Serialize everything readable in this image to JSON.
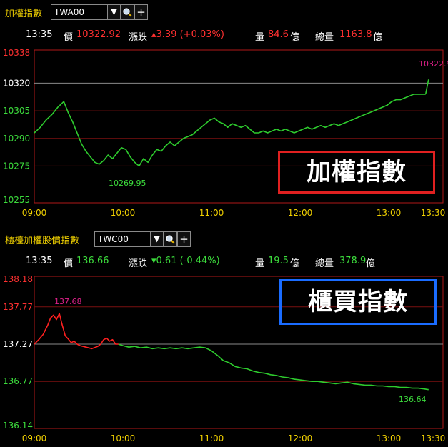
{
  "top": {
    "title": "加權指數",
    "symbol": "TWA00",
    "info": {
      "time": "13:35",
      "price_label": "價",
      "price": "10322.92",
      "change_label": "漲跌",
      "change": "▴3.39 (+0.03%)",
      "volume_label": "量",
      "volume": "84.6",
      "volume_unit": "億",
      "total_label": "總量",
      "total": "1163.8",
      "total_unit": "億"
    },
    "badge": "加權指數"
  },
  "bottom": {
    "title": "櫃檯加權股價指數",
    "symbol": "TWC00",
    "info": {
      "time": "13:35",
      "price_label": "價",
      "price": "136.66",
      "change_label": "漲跌",
      "change": "▾0.61 (-0.44%)",
      "volume_label": "量",
      "volume": "19.5",
      "volume_unit": "億",
      "total_label": "總量",
      "total": "378.9",
      "total_unit": "億"
    },
    "badge": "櫃買指數"
  },
  "icons": {
    "dropdown": "chevron-down-icon",
    "search": "magnifier-icon",
    "add": "plus-icon"
  },
  "colors": {
    "up": "#ff2020",
    "down": "#2ecc2e",
    "axis_label": "#f0d000",
    "badge_top_border": "#e02020",
    "badge_bottom_border": "#1a6cff"
  },
  "chart_data": [
    {
      "type": "line",
      "title": "加權指數",
      "x_ticks": [
        "09:00",
        "10:00",
        "11:00",
        "12:00",
        "13:00",
        "13:30"
      ],
      "y_ticks": [
        "10338",
        "10320",
        "10305",
        "10290",
        "10275",
        "10255"
      ],
      "ylim": [
        10255,
        10338
      ],
      "reference": 10320,
      "annotations": {
        "high": "10322.9",
        "low": "10269.95"
      },
      "series": [
        {
          "values": [
            [
              "09:00",
              10293
            ],
            [
              "09:04",
              10296
            ],
            [
              "09:08",
              10300
            ],
            [
              "09:12",
              10303
            ],
            [
              "09:16",
              10307
            ],
            [
              "09:20",
              10310
            ],
            [
              "09:23",
              10304
            ],
            [
              "09:26",
              10299
            ],
            [
              "09:29",
              10293
            ],
            [
              "09:32",
              10287
            ],
            [
              "09:35",
              10283
            ],
            [
              "09:38",
              10280
            ],
            [
              "09:41",
              10277
            ],
            [
              "09:44",
              10276
            ],
            [
              "09:47",
              10278
            ],
            [
              "09:50",
              10281
            ],
            [
              "09:53",
              10279
            ],
            [
              "09:56",
              10282
            ],
            [
              "09:59",
              10285
            ],
            [
              "10:02",
              10284
            ],
            [
              "10:05",
              10280
            ],
            [
              "10:08",
              10277
            ],
            [
              "10:11",
              10275
            ],
            [
              "10:14",
              10279
            ],
            [
              "10:17",
              10277
            ],
            [
              "10:20",
              10281
            ],
            [
              "10:23",
              10284
            ],
            [
              "10:26",
              10283
            ],
            [
              "10:29",
              10286
            ],
            [
              "10:32",
              10288
            ],
            [
              "10:35",
              10286
            ],
            [
              "10:38",
              10288
            ],
            [
              "10:41",
              10290
            ],
            [
              "10:44",
              10291
            ],
            [
              "10:47",
              10292
            ],
            [
              "10:50",
              10294
            ],
            [
              "10:53",
              10296
            ],
            [
              "10:56",
              10298
            ],
            [
              "10:59",
              10300
            ],
            [
              "11:02",
              10301
            ],
            [
              "11:05",
              10299
            ],
            [
              "11:08",
              10298
            ],
            [
              "11:11",
              10296
            ],
            [
              "11:14",
              10298
            ],
            [
              "11:17",
              10297
            ],
            [
              "11:20",
              10296
            ],
            [
              "11:23",
              10297
            ],
            [
              "11:26",
              10295
            ],
            [
              "11:29",
              10293
            ],
            [
              "11:32",
              10293
            ],
            [
              "11:35",
              10294
            ],
            [
              "11:38",
              10293
            ],
            [
              "11:41",
              10294
            ],
            [
              "11:44",
              10295
            ],
            [
              "11:47",
              10294
            ],
            [
              "11:50",
              10295
            ],
            [
              "11:53",
              10294
            ],
            [
              "11:56",
              10293
            ],
            [
              "11:59",
              10294
            ],
            [
              "12:02",
              10295
            ],
            [
              "12:05",
              10296
            ],
            [
              "12:08",
              10295
            ],
            [
              "12:11",
              10296
            ],
            [
              "12:14",
              10297
            ],
            [
              "12:17",
              10296
            ],
            [
              "12:20",
              10297
            ],
            [
              "12:23",
              10298
            ],
            [
              "12:26",
              10297
            ],
            [
              "12:29",
              10298
            ],
            [
              "12:32",
              10299
            ],
            [
              "12:35",
              10300
            ],
            [
              "12:38",
              10301
            ],
            [
              "12:41",
              10302
            ],
            [
              "12:44",
              10303
            ],
            [
              "12:47",
              10304
            ],
            [
              "12:50",
              10305
            ],
            [
              "12:53",
              10306
            ],
            [
              "12:56",
              10307
            ],
            [
              "12:59",
              10308
            ],
            [
              "13:02",
              10310
            ],
            [
              "13:05",
              10311
            ],
            [
              "13:08",
              10311
            ],
            [
              "13:11",
              10312
            ],
            [
              "13:14",
              10313
            ],
            [
              "13:17",
              10314
            ],
            [
              "13:20",
              10314
            ],
            [
              "13:23",
              10314
            ],
            [
              "13:25",
              10314
            ]
          ]
        },
        {
          "values": [
            [
              "13:25",
              10314
            ],
            [
              "13:26",
              10318
            ],
            [
              "13:27",
              10322
            ]
          ]
        }
      ]
    },
    {
      "type": "line",
      "title": "櫃買指數",
      "x_ticks": [
        "09:00",
        "10:00",
        "11:00",
        "12:00",
        "13:00",
        "13:30"
      ],
      "y_ticks": [
        "138.18",
        "137.77",
        "137.27",
        "136.77",
        "136.14"
      ],
      "ylim": [
        136.14,
        138.18
      ],
      "reference": 137.27,
      "annotations": {
        "high": "137.68",
        "low": "136.64"
      },
      "series": [
        {
          "values": [
            [
              "09:00",
              137.27
            ],
            [
              "09:03",
              137.33
            ],
            [
              "09:06",
              137.4
            ],
            [
              "09:09",
              137.52
            ],
            [
              "09:11",
              137.62
            ],
            [
              "09:13",
              137.66
            ],
            [
              "09:15",
              137.6
            ],
            [
              "09:17",
              137.68
            ],
            [
              "09:19",
              137.52
            ],
            [
              "09:21",
              137.38
            ],
            [
              "09:23",
              137.34
            ],
            [
              "09:25",
              137.29
            ],
            [
              "09:27",
              137.31
            ],
            [
              "09:29",
              137.27
            ],
            [
              "09:31",
              137.25
            ],
            [
              "09:35",
              137.23
            ],
            [
              "09:39",
              137.21
            ],
            [
              "09:43",
              137.24
            ],
            [
              "09:45",
              137.27
            ],
            [
              "09:47",
              137.33
            ],
            [
              "09:49",
              137.35
            ],
            [
              "09:51",
              137.31
            ],
            [
              "09:53",
              137.33
            ],
            [
              "09:55",
              137.27
            ],
            [
              "09:57",
              137.27
            ]
          ]
        },
        {
          "values": [
            [
              "09:57",
              137.27
            ],
            [
              "10:00",
              137.25
            ],
            [
              "10:04",
              137.23
            ],
            [
              "10:08",
              137.24
            ],
            [
              "10:12",
              137.22
            ],
            [
              "10:16",
              137.23
            ],
            [
              "10:20",
              137.21
            ],
            [
              "10:24",
              137.22
            ],
            [
              "10:28",
              137.21
            ],
            [
              "10:32",
              137.22
            ],
            [
              "10:36",
              137.21
            ],
            [
              "10:40",
              137.22
            ],
            [
              "10:44",
              137.21
            ],
            [
              "10:48",
              137.22
            ],
            [
              "10:52",
              137.23
            ],
            [
              "10:56",
              137.22
            ],
            [
              "11:00",
              137.18
            ],
            [
              "11:04",
              137.12
            ],
            [
              "11:08",
              137.05
            ],
            [
              "11:12",
              137.02
            ],
            [
              "11:16",
              136.97
            ],
            [
              "11:20",
              136.95
            ],
            [
              "11:24",
              136.94
            ],
            [
              "11:28",
              136.91
            ],
            [
              "11:32",
              136.89
            ],
            [
              "11:36",
              136.88
            ],
            [
              "11:40",
              136.86
            ],
            [
              "11:44",
              136.85
            ],
            [
              "11:48",
              136.83
            ],
            [
              "11:52",
              136.82
            ],
            [
              "11:56",
              136.8
            ],
            [
              "12:00",
              136.79
            ],
            [
              "12:04",
              136.78
            ],
            [
              "12:08",
              136.77
            ],
            [
              "12:12",
              136.77
            ],
            [
              "12:16",
              136.76
            ],
            [
              "12:20",
              136.75
            ],
            [
              "12:24",
              136.74
            ],
            [
              "12:28",
              136.75
            ],
            [
              "12:32",
              136.76
            ],
            [
              "12:36",
              136.74
            ],
            [
              "12:40",
              136.73
            ],
            [
              "12:44",
              136.72
            ],
            [
              "12:48",
              136.72
            ],
            [
              "12:52",
              136.71
            ],
            [
              "12:56",
              136.71
            ],
            [
              "13:00",
              136.7
            ],
            [
              "13:04",
              136.7
            ],
            [
              "13:08",
              136.69
            ],
            [
              "13:12",
              136.69
            ],
            [
              "13:16",
              136.68
            ],
            [
              "13:20",
              136.68
            ],
            [
              "13:24",
              136.67
            ],
            [
              "13:27",
              136.66
            ]
          ]
        }
      ]
    }
  ]
}
